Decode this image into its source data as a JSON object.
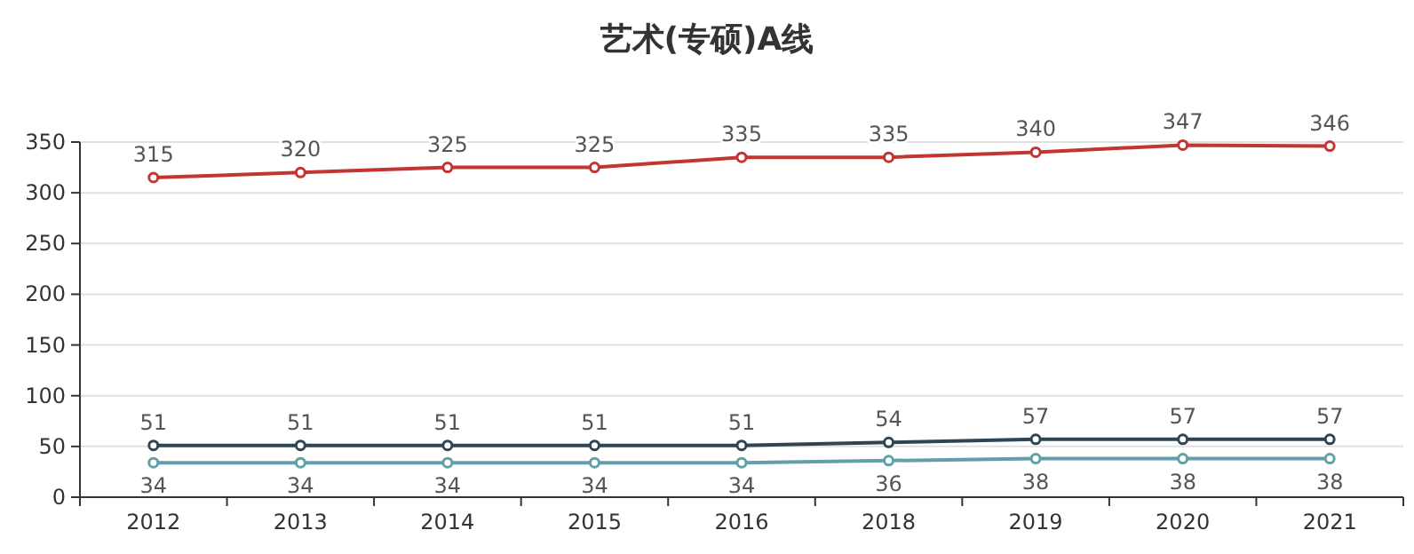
{
  "chart_data": {
    "type": "line",
    "title": "艺术(专硕)A线",
    "categories": [
      "2012",
      "2013",
      "2014",
      "2015",
      "2016",
      "2018",
      "2019",
      "2020",
      "2021"
    ],
    "series": [
      {
        "color": "#c23531",
        "values": [
          315,
          320,
          325,
          325,
          335,
          335,
          340,
          347,
          346
        ]
      },
      {
        "color": "#2f4554",
        "values": [
          51,
          51,
          51,
          51,
          51,
          54,
          57,
          57,
          57
        ]
      },
      {
        "color": "#61a0a8",
        "values": [
          34,
          34,
          34,
          34,
          34,
          36,
          38,
          38,
          38
        ]
      }
    ],
    "ylim": [
      0,
      350
    ],
    "yticks": [
      0,
      50,
      100,
      150,
      200,
      250,
      300,
      350
    ],
    "grid": "y",
    "data_labels": true,
    "marker": "circle",
    "line_style": "solid"
  }
}
